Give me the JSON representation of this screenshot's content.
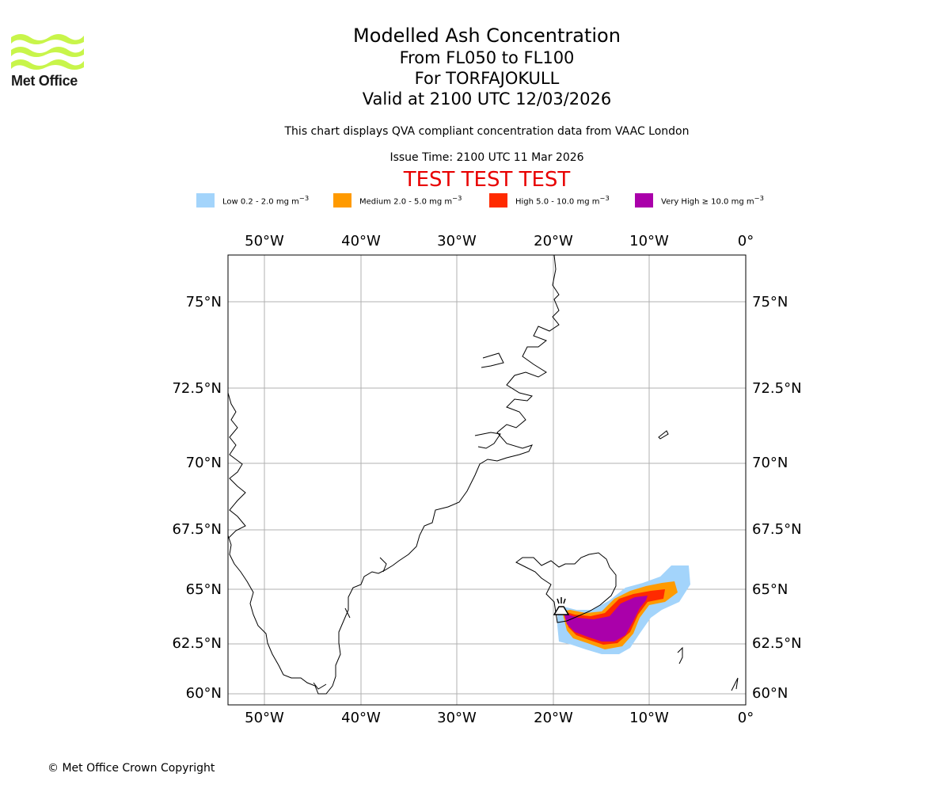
{
  "header": {
    "logo_text": "Met Office",
    "title": "Modelled Ash Concentration",
    "levels": "From FL050 to FL100",
    "volcano": "For TORFAJOKULL",
    "valid": "Valid at 2100 UTC 12/03/2026",
    "compliance": "This chart displays QVA compliant concentration data from VAAC London",
    "issue": "Issue Time: 2100 UTC 11 Mar 2026",
    "test": "TEST TEST TEST"
  },
  "legend": [
    {
      "label": "Low 0.2 - 2.0 mg m",
      "color": "#a3d4fb"
    },
    {
      "label": "Medium 2.0 - 5.0 mg m",
      "color": "#ff9a00"
    },
    {
      "label": "High 5.0 - 10.0 mg m",
      "color": "#ff2a00"
    },
    {
      "label": "Very High ≥ 10.0 mg m",
      "color": "#aa00aa"
    }
  ],
  "legend_unit_sup": "−3",
  "map": {
    "lon_labels": [
      "50°W",
      "40°W",
      "30°W",
      "20°W",
      "10°W",
      "0°"
    ],
    "lat_labels": [
      "75°N",
      "72.5°N",
      "70°N",
      "67.5°N",
      "65°N",
      "62.5°N",
      "60°N"
    ],
    "colors": {
      "coast": "#000000",
      "grid": "#b0b0b0"
    }
  },
  "footer": {
    "copyright": "© Met Office Crown Copyright"
  }
}
